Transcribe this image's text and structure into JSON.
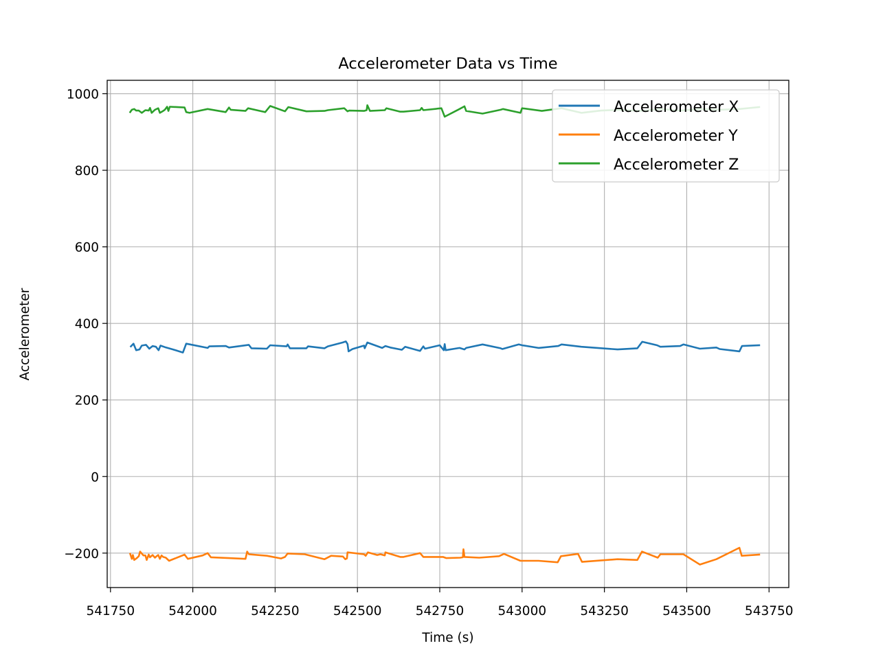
{
  "chart_data": {
    "type": "line",
    "title": "Accelerometer Data vs Time",
    "xlabel": "Time (s)",
    "ylabel": "Accelerometer",
    "xlim": [
      541740,
      543810
    ],
    "ylim": [
      -290,
      1035
    ],
    "x_ticks": [
      541750,
      542000,
      542250,
      542500,
      542750,
      543000,
      543250,
      543500,
      543750
    ],
    "x_tick_labels": [
      "541750",
      "542000",
      "542250",
      "542500",
      "542750",
      "543000",
      "543250",
      "543500",
      "543750"
    ],
    "y_ticks": [
      -200,
      0,
      200,
      400,
      600,
      800,
      1000
    ],
    "y_tick_labels": [
      "−200",
      "0",
      "200",
      "400",
      "600",
      "800",
      "1000"
    ],
    "grid": true,
    "legend_position": "top-right",
    "series": [
      {
        "name": "Accelerometer X",
        "color": "#1f77b4",
        "points": [
          [
            541812,
            340
          ],
          [
            541820,
            347
          ],
          [
            541828,
            330
          ],
          [
            541838,
            332
          ],
          [
            541845,
            342
          ],
          [
            541858,
            344
          ],
          [
            541868,
            334
          ],
          [
            541878,
            341
          ],
          [
            541888,
            339
          ],
          [
            541896,
            330
          ],
          [
            541902,
            342
          ],
          [
            541915,
            338
          ],
          [
            541940,
            332
          ],
          [
            541970,
            324
          ],
          [
            541980,
            347
          ],
          [
            541992,
            345
          ],
          [
            542045,
            336
          ],
          [
            542050,
            340
          ],
          [
            542100,
            341
          ],
          [
            542110,
            337
          ],
          [
            542170,
            344
          ],
          [
            542178,
            335
          ],
          [
            542225,
            334
          ],
          [
            542235,
            343
          ],
          [
            542285,
            340
          ],
          [
            542288,
            345
          ],
          [
            542295,
            335
          ],
          [
            542345,
            335
          ],
          [
            542350,
            340
          ],
          [
            542400,
            335
          ],
          [
            542410,
            340
          ],
          [
            542455,
            350
          ],
          [
            542465,
            353
          ],
          [
            542470,
            346
          ],
          [
            542473,
            327
          ],
          [
            542485,
            333
          ],
          [
            542520,
            342
          ],
          [
            542522,
            335
          ],
          [
            542530,
            350
          ],
          [
            542575,
            336
          ],
          [
            542585,
            341
          ],
          [
            542600,
            337
          ],
          [
            542635,
            331
          ],
          [
            542645,
            339
          ],
          [
            542690,
            328
          ],
          [
            542700,
            340
          ],
          [
            542705,
            334
          ],
          [
            542750,
            343
          ],
          [
            542762,
            330
          ],
          [
            542765,
            346
          ],
          [
            542768,
            330
          ],
          [
            542810,
            336
          ],
          [
            542825,
            332
          ],
          [
            542830,
            336
          ],
          [
            542880,
            345
          ],
          [
            542935,
            335
          ],
          [
            542940,
            333
          ],
          [
            542990,
            345
          ],
          [
            543000,
            343
          ],
          [
            543050,
            336
          ],
          [
            543110,
            341
          ],
          [
            543120,
            345
          ],
          [
            543180,
            339
          ],
          [
            543290,
            332
          ],
          [
            543350,
            335
          ],
          [
            543365,
            352
          ],
          [
            543410,
            343
          ],
          [
            543420,
            339
          ],
          [
            543480,
            341
          ],
          [
            543490,
            345
          ],
          [
            543540,
            334
          ],
          [
            543590,
            337
          ],
          [
            543600,
            333
          ],
          [
            543650,
            328
          ],
          [
            543660,
            327
          ],
          [
            543668,
            341
          ],
          [
            543720,
            343
          ]
        ]
      },
      {
        "name": "Accelerometer Y",
        "color": "#ff7f0e",
        "points": [
          [
            541810,
            -202
          ],
          [
            541815,
            -215
          ],
          [
            541818,
            -205
          ],
          [
            541822,
            -218
          ],
          [
            541830,
            -213
          ],
          [
            541836,
            -208
          ],
          [
            541840,
            -196
          ],
          [
            541850,
            -206
          ],
          [
            541856,
            -206
          ],
          [
            541860,
            -218
          ],
          [
            541866,
            -204
          ],
          [
            541870,
            -211
          ],
          [
            541878,
            -205
          ],
          [
            541885,
            -212
          ],
          [
            541890,
            -208
          ],
          [
            541895,
            -205
          ],
          [
            541900,
            -215
          ],
          [
            541905,
            -206
          ],
          [
            541910,
            -210
          ],
          [
            541918,
            -212
          ],
          [
            541928,
            -220
          ],
          [
            541975,
            -204
          ],
          [
            541985,
            -215
          ],
          [
            542030,
            -206
          ],
          [
            542045,
            -200
          ],
          [
            542055,
            -211
          ],
          [
            542110,
            -213
          ],
          [
            542160,
            -215
          ],
          [
            542165,
            -196
          ],
          [
            542170,
            -203
          ],
          [
            542225,
            -207
          ],
          [
            542268,
            -214
          ],
          [
            542280,
            -210
          ],
          [
            542288,
            -201
          ],
          [
            542340,
            -203
          ],
          [
            542400,
            -216
          ],
          [
            542420,
            -207
          ],
          [
            542456,
            -209
          ],
          [
            542463,
            -216
          ],
          [
            542468,
            -214
          ],
          [
            542470,
            -198
          ],
          [
            542520,
            -203
          ],
          [
            542525,
            -207
          ],
          [
            542532,
            -198
          ],
          [
            542560,
            -205
          ],
          [
            542570,
            -203
          ],
          [
            542583,
            -206
          ],
          [
            542585,
            -198
          ],
          [
            542630,
            -210
          ],
          [
            542640,
            -210
          ],
          [
            542690,
            -200
          ],
          [
            542700,
            -210
          ],
          [
            542740,
            -210
          ],
          [
            542760,
            -210
          ],
          [
            542770,
            -213
          ],
          [
            542812,
            -212
          ],
          [
            542820,
            -211
          ],
          [
            542822,
            -190
          ],
          [
            542825,
            -210
          ],
          [
            542870,
            -212
          ],
          [
            542930,
            -208
          ],
          [
            542945,
            -202
          ],
          [
            542995,
            -220
          ],
          [
            543050,
            -220
          ],
          [
            543108,
            -224
          ],
          [
            543118,
            -208
          ],
          [
            543170,
            -202
          ],
          [
            543182,
            -223
          ],
          [
            543290,
            -216
          ],
          [
            543350,
            -218
          ],
          [
            543364,
            -196
          ],
          [
            543412,
            -212
          ],
          [
            543420,
            -203
          ],
          [
            543490,
            -203
          ],
          [
            543540,
            -230
          ],
          [
            543590,
            -216
          ],
          [
            543660,
            -186
          ],
          [
            543667,
            -207
          ],
          [
            543720,
            -204
          ]
        ]
      },
      {
        "name": "Accelerometer Z",
        "color": "#2ca02c",
        "points": [
          [
            541810,
            952
          ],
          [
            541815,
            958
          ],
          [
            541822,
            960
          ],
          [
            541828,
            956
          ],
          [
            541836,
            956
          ],
          [
            541845,
            950
          ],
          [
            541856,
            957
          ],
          [
            541866,
            956
          ],
          [
            541870,
            963
          ],
          [
            541875,
            950
          ],
          [
            541885,
            958
          ],
          [
            541895,
            962
          ],
          [
            541900,
            950
          ],
          [
            541910,
            955
          ],
          [
            541915,
            958
          ],
          [
            541922,
            966
          ],
          [
            541926,
            955
          ],
          [
            541930,
            966
          ],
          [
            541975,
            964
          ],
          [
            541980,
            952
          ],
          [
            541990,
            950
          ],
          [
            542045,
            960
          ],
          [
            542100,
            952
          ],
          [
            542110,
            964
          ],
          [
            542115,
            958
          ],
          [
            542160,
            955
          ],
          [
            542168,
            962
          ],
          [
            542220,
            952
          ],
          [
            542235,
            968
          ],
          [
            542280,
            954
          ],
          [
            542290,
            965
          ],
          [
            542345,
            954
          ],
          [
            542400,
            955
          ],
          [
            542410,
            957
          ],
          [
            542460,
            962
          ],
          [
            542470,
            954
          ],
          [
            542475,
            956
          ],
          [
            542520,
            955
          ],
          [
            542528,
            957
          ],
          [
            542530,
            970
          ],
          [
            542538,
            955
          ],
          [
            542583,
            957
          ],
          [
            542588,
            962
          ],
          [
            542630,
            953
          ],
          [
            542640,
            953
          ],
          [
            542690,
            957
          ],
          [
            542695,
            963
          ],
          [
            542700,
            957
          ],
          [
            542755,
            962
          ],
          [
            542765,
            940
          ],
          [
            542810,
            960
          ],
          [
            542825,
            967
          ],
          [
            542830,
            955
          ],
          [
            542880,
            948
          ],
          [
            542935,
            958
          ],
          [
            542942,
            960
          ],
          [
            542995,
            950
          ],
          [
            543000,
            962
          ],
          [
            543060,
            955
          ],
          [
            543120,
            962
          ],
          [
            543180,
            950
          ],
          [
            543240,
            956
          ],
          [
            543300,
            958
          ],
          [
            543360,
            955
          ],
          [
            543420,
            960
          ],
          [
            543480,
            956
          ],
          [
            543540,
            960
          ],
          [
            543600,
            958
          ],
          [
            543660,
            960
          ],
          [
            543720,
            965
          ]
        ]
      }
    ]
  }
}
